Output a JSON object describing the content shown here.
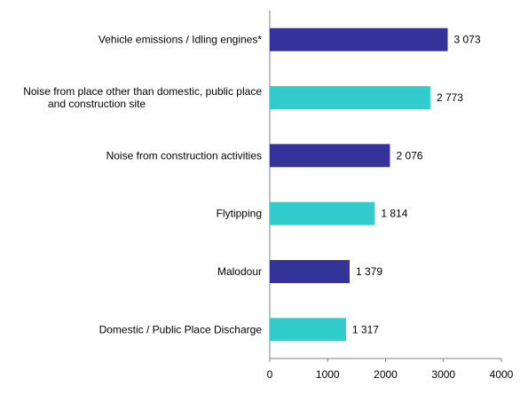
{
  "chart_data": {
    "type": "bar",
    "orientation": "horizontal",
    "categories": [
      [
        "Vehicle emissions / Idling engines*"
      ],
      [
        "Noise from place other than domestic, public place",
        "and construction site"
      ],
      [
        "Noise from construction activities"
      ],
      [
        "Flytipping"
      ],
      [
        "Malodour"
      ],
      [
        "Domestic / Public Place Discharge"
      ]
    ],
    "values": [
      3073,
      2773,
      2076,
      1814,
      1379,
      1317
    ],
    "value_labels": [
      "3 073",
      "2 773",
      "2 076",
      "1 814",
      "1 379",
      "1 317"
    ],
    "colors": [
      "#33339a",
      "#33cccc",
      "#33339a",
      "#33cccc",
      "#33339a",
      "#33cccc"
    ],
    "xlim": [
      0,
      4000
    ],
    "xticks": [
      0,
      1000,
      2000,
      3000,
      4000
    ],
    "xtick_labels": [
      "0",
      "1000",
      "2000",
      "3000",
      "4000"
    ],
    "grid": false,
    "legend": "none",
    "title": "",
    "xlabel": "",
    "ylabel": ""
  }
}
